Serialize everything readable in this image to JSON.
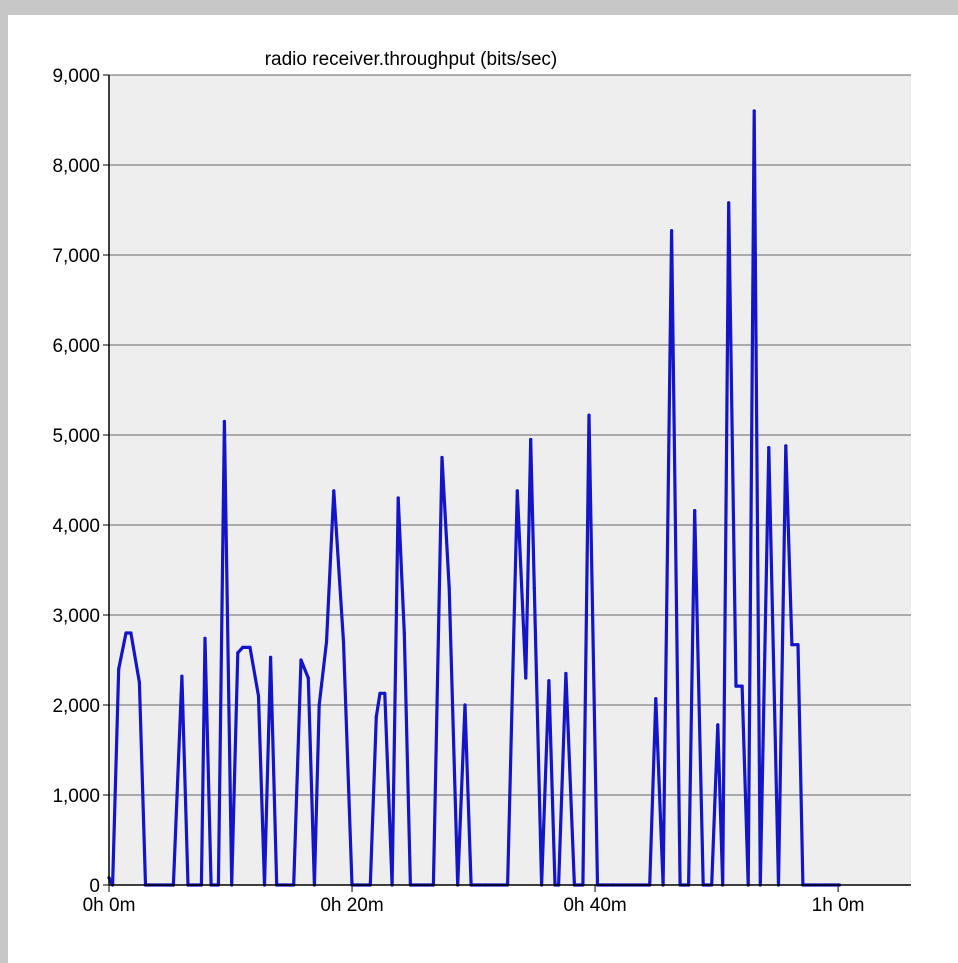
{
  "colors": {
    "frame": "#c7c7c7",
    "panel": "#ffffff",
    "plot_background": "#eeeeee",
    "grid": "#666666",
    "axis": "#000000",
    "series": "#1414c8"
  },
  "chart_data": {
    "type": "line",
    "title": "radio receiver.throughput (bits/sec)",
    "xlabel": "",
    "ylabel": "",
    "x_unit": "minutes",
    "xlim": [
      0,
      66
    ],
    "ylim": [
      0,
      9000
    ],
    "grid": true,
    "legend": "none",
    "x_ticks": [
      {
        "value": 0,
        "label": "0h 0m"
      },
      {
        "value": 20,
        "label": "0h 20m"
      },
      {
        "value": 40,
        "label": "0h 40m"
      },
      {
        "value": 60,
        "label": "1h 0m"
      }
    ],
    "y_ticks": [
      {
        "value": 0,
        "label": "0"
      },
      {
        "value": 1000,
        "label": "1,000"
      },
      {
        "value": 2000,
        "label": "2,000"
      },
      {
        "value": 3000,
        "label": "3,000"
      },
      {
        "value": 4000,
        "label": "4,000"
      },
      {
        "value": 5000,
        "label": "5,000"
      },
      {
        "value": 6000,
        "label": "6,000"
      },
      {
        "value": 7000,
        "label": "7,000"
      },
      {
        "value": 8000,
        "label": "8,000"
      },
      {
        "value": 9000,
        "label": "9,000"
      }
    ],
    "series": [
      {
        "x": [
          0.0,
          0.3,
          0.8,
          1.4,
          1.8,
          2.5,
          3.0,
          3.3,
          4.8,
          5.3,
          6.0,
          6.5,
          7.0,
          7.6,
          7.9,
          8.4,
          9.0,
          9.5,
          10.1,
          10.6,
          11.0,
          11.6,
          12.3,
          12.8,
          13.3,
          13.8,
          14.4,
          15.2,
          15.8,
          16.4,
          16.9,
          17.3,
          17.9,
          18.5,
          19.3,
          20.0,
          20.5,
          21.5,
          22.0,
          22.3,
          22.7,
          23.3,
          23.8,
          24.3,
          24.8,
          25.4,
          26.1,
          26.7,
          27.4,
          28.0,
          28.7,
          29.3,
          29.8,
          30.4,
          31.0,
          32.8,
          33.6,
          34.3,
          34.7,
          35.0,
          35.6,
          36.2,
          36.7,
          37.0,
          37.6,
          38.3,
          38.7,
          39.0,
          39.5,
          40.2,
          40.6,
          41.0,
          41.5,
          44.5,
          45.0,
          45.6,
          46.3,
          47.0,
          47.7,
          48.2,
          48.9,
          49.6,
          50.1,
          50.5,
          51.0,
          51.6,
          52.1,
          52.6,
          53.1,
          53.6,
          54.3,
          55.1,
          55.7,
          56.2,
          56.7,
          57.1,
          57.6,
          58.1,
          58.9,
          59.4,
          60.1
        ],
        "y": [
          80,
          0,
          2400,
          2800,
          2800,
          2250,
          0,
          0,
          0,
          0,
          2320,
          0,
          0,
          0,
          2740,
          0,
          0,
          5150,
          0,
          2580,
          2640,
          2640,
          2100,
          0,
          2530,
          0,
          0,
          0,
          2500,
          2300,
          0,
          2000,
          2700,
          4380,
          2700,
          0,
          0,
          0,
          1870,
          2130,
          2130,
          0,
          4300,
          2800,
          0,
          0,
          0,
          0,
          4750,
          3300,
          0,
          2000,
          0,
          0,
          0,
          0,
          4380,
          2300,
          4950,
          3300,
          0,
          2270,
          0,
          0,
          2350,
          0,
          0,
          0,
          5220,
          0,
          0,
          0,
          0,
          0,
          2070,
          0,
          7270,
          0,
          0,
          4160,
          0,
          0,
          1780,
          0,
          7580,
          2210,
          2210,
          0,
          8600,
          0,
          4860,
          0,
          4880,
          2670,
          2670,
          0,
          0,
          0,
          0,
          0,
          0
        ]
      }
    ]
  }
}
